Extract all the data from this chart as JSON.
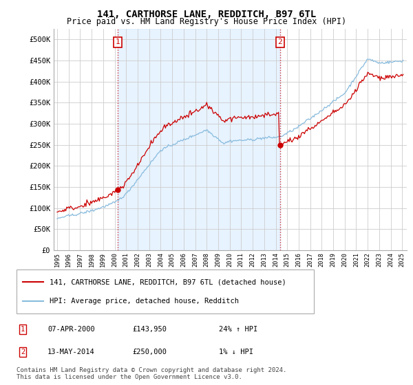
{
  "title": "141, CARTHORSE LANE, REDDITCH, B97 6TL",
  "subtitle": "Price paid vs. HM Land Registry's House Price Index (HPI)",
  "background_color": "#ffffff",
  "plot_background": "#ffffff",
  "grid_color": "#cccccc",
  "shade_color": "#ddeeff",
  "sale1_date_label": "07-APR-2000",
  "sale1_price": 143950,
  "sale1_hpi_note": "24% ↑ HPI",
  "sale2_date_label": "13-MAY-2014",
  "sale2_price": 250000,
  "sale2_hpi_note": "1% ↓ HPI",
  "legend_line1": "141, CARTHORSE LANE, REDDITCH, B97 6TL (detached house)",
  "legend_line2": "HPI: Average price, detached house, Redditch",
  "footer": "Contains HM Land Registry data © Crown copyright and database right 2024.\nThis data is licensed under the Open Government Licence v3.0.",
  "red_color": "#cc0000",
  "blue_color": "#88bbdd",
  "vline_color": "#cc0000",
  "dot_color": "#cc0000",
  "ylim_min": 0,
  "ylim_max": 525000,
  "yticks": [
    0,
    50000,
    100000,
    150000,
    200000,
    250000,
    300000,
    350000,
    400000,
    450000,
    500000
  ],
  "ytick_labels": [
    "£0",
    "£50K",
    "£100K",
    "£150K",
    "£200K",
    "£250K",
    "£300K",
    "£350K",
    "£400K",
    "£450K",
    "£500K"
  ],
  "sale1_x": 2000.27,
  "sale2_x": 2014.37,
  "box1_label": "1",
  "box2_label": "2",
  "title_fontsize": 10,
  "subtitle_fontsize": 8.5,
  "tick_fontsize": 7.5,
  "legend_fontsize": 7.5,
  "footer_fontsize": 6.5
}
